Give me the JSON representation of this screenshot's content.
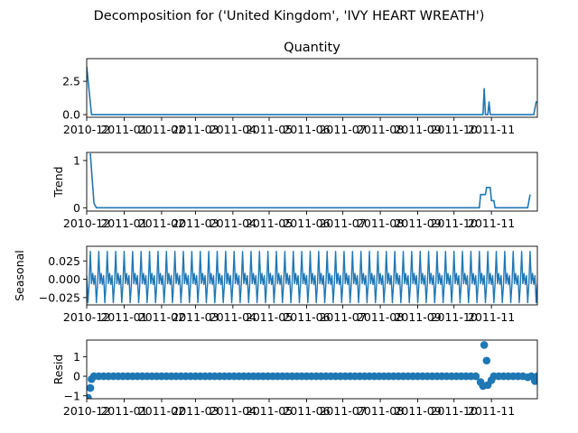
{
  "figure": {
    "suptitle": "Decomposition for ('United Kingdom', 'IVY HEART WREATH')"
  },
  "chart_data": [
    {
      "type": "line",
      "name": "observed",
      "title": "Quantity",
      "ylabel": "",
      "color": "#1f77b4",
      "xlim": [
        "2010-12-01",
        "2011-12-09"
      ],
      "x_ticks": [
        "2010-12",
        "2011-01",
        "2011-02",
        "2011-03",
        "2011-04",
        "2011-05",
        "2011-06",
        "2011-07",
        "2011-08",
        "2011-09",
        "2011-10",
        "2011-11"
      ],
      "ylim": [
        -0.2,
        4.2
      ],
      "y_ticks": [
        "0.0",
        "2.5"
      ],
      "y_tick_values": [
        0.0,
        2.5
      ],
      "series": [
        {
          "x": [
            "2010-12-01",
            "2010-12-05",
            "2011-10-25",
            "2011-10-26",
            "2011-10-27",
            "2011-10-29",
            "2011-10-30",
            "2011-10-31",
            "2011-12-06",
            "2011-12-08",
            "2011-12-09"
          ],
          "y": [
            3.6,
            0,
            0,
            1.95,
            0,
            0,
            0.95,
            0,
            0,
            0.95,
            0.95
          ]
        }
      ]
    },
    {
      "type": "line",
      "name": "trend",
      "title": "",
      "ylabel": "Trend",
      "color": "#1f77b4",
      "xlim": [
        "2010-12-01",
        "2011-12-09"
      ],
      "x_ticks": [
        "2010-12",
        "2011-01",
        "2011-02",
        "2011-03",
        "2011-04",
        "2011-05",
        "2011-06",
        "2011-07",
        "2011-08",
        "2011-09",
        "2011-10",
        "2011-11"
      ],
      "ylim": [
        -0.07,
        1.17
      ],
      "y_ticks": [
        "0",
        "1"
      ],
      "y_tick_values": [
        0,
        1
      ],
      "series": [
        {
          "x": [
            "2010-12-04",
            "2010-12-07",
            "2010-12-09",
            "2011-10-22",
            "2011-10-23",
            "2011-10-27",
            "2011-10-28",
            "2011-10-31",
            "2011-11-01",
            "2011-11-03",
            "2011-11-04",
            "2011-12-01",
            "2011-12-03"
          ],
          "y": [
            1.15,
            0.1,
            0,
            0,
            0.28,
            0.28,
            0.43,
            0.43,
            0.15,
            0.15,
            0,
            0,
            0.28
          ]
        }
      ]
    },
    {
      "type": "line",
      "name": "seasonal",
      "title": "",
      "ylabel": "Seasonal",
      "color": "#1f77b4",
      "xlim": [
        "2010-12-01",
        "2011-12-09"
      ],
      "x_ticks": [
        "2010-12",
        "2011-01",
        "2011-02",
        "2011-03",
        "2011-04",
        "2011-05",
        "2011-06",
        "2011-07",
        "2011-08",
        "2011-09",
        "2011-10",
        "2011-11"
      ],
      "ylim": [
        -0.035,
        0.045
      ],
      "y_ticks": [
        "−0.025",
        "0.000",
        "0.025"
      ],
      "y_tick_values": [
        -0.025,
        0.0,
        0.025
      ],
      "period": 7,
      "start": "2010-12-01",
      "end": "2011-12-09",
      "cycle_values": [
        0.005,
        -0.032,
        -0.006,
        0.038,
        -0.006,
        0.008,
        -0.007
      ]
    },
    {
      "type": "scatter",
      "name": "resid",
      "title": "",
      "ylabel": "Resid",
      "color": "#1f77b4",
      "xlim": [
        "2010-12-01",
        "2011-12-09"
      ],
      "x_ticks": [
        "2010-12",
        "2011-01",
        "2011-02",
        "2011-03",
        "2011-04",
        "2011-05",
        "2011-06",
        "2011-07",
        "2011-08",
        "2011-09",
        "2011-10",
        "2011-11"
      ],
      "ylim": [
        -1.15,
        1.85
      ],
      "y_ticks": [
        "−1",
        "0",
        "1"
      ],
      "y_tick_values": [
        -1,
        0,
        1
      ],
      "baseline": 0,
      "fill_from": "2010-12-07",
      "fill_to": "2011-10-21",
      "fill_every_days": 4,
      "points": [
        {
          "x": "2010-12-02",
          "y": -1.1
        },
        {
          "x": "2010-12-04",
          "y": -0.6
        },
        {
          "x": "2010-12-05",
          "y": -0.15
        },
        {
          "x": "2011-10-23",
          "y": -0.3
        },
        {
          "x": "2011-10-25",
          "y": -0.5
        },
        {
          "x": "2011-10-26",
          "y": 1.6
        },
        {
          "x": "2011-10-28",
          "y": 0.8
        },
        {
          "x": "2011-10-29",
          "y": -0.45
        },
        {
          "x": "2011-11-01",
          "y": -0.2
        },
        {
          "x": "2011-11-03",
          "y": 0.0
        },
        {
          "x": "2011-11-07",
          "y": 0.0
        },
        {
          "x": "2011-11-11",
          "y": 0.0
        },
        {
          "x": "2011-11-15",
          "y": 0.0
        },
        {
          "x": "2011-11-19",
          "y": 0.0
        },
        {
          "x": "2011-11-23",
          "y": 0.0
        },
        {
          "x": "2011-11-27",
          "y": 0.0
        },
        {
          "x": "2011-12-01",
          "y": -0.05
        },
        {
          "x": "2011-12-04",
          "y": 0.0
        },
        {
          "x": "2011-12-07",
          "y": -0.25
        },
        {
          "x": "2011-12-09",
          "y": 0.0
        }
      ]
    }
  ]
}
